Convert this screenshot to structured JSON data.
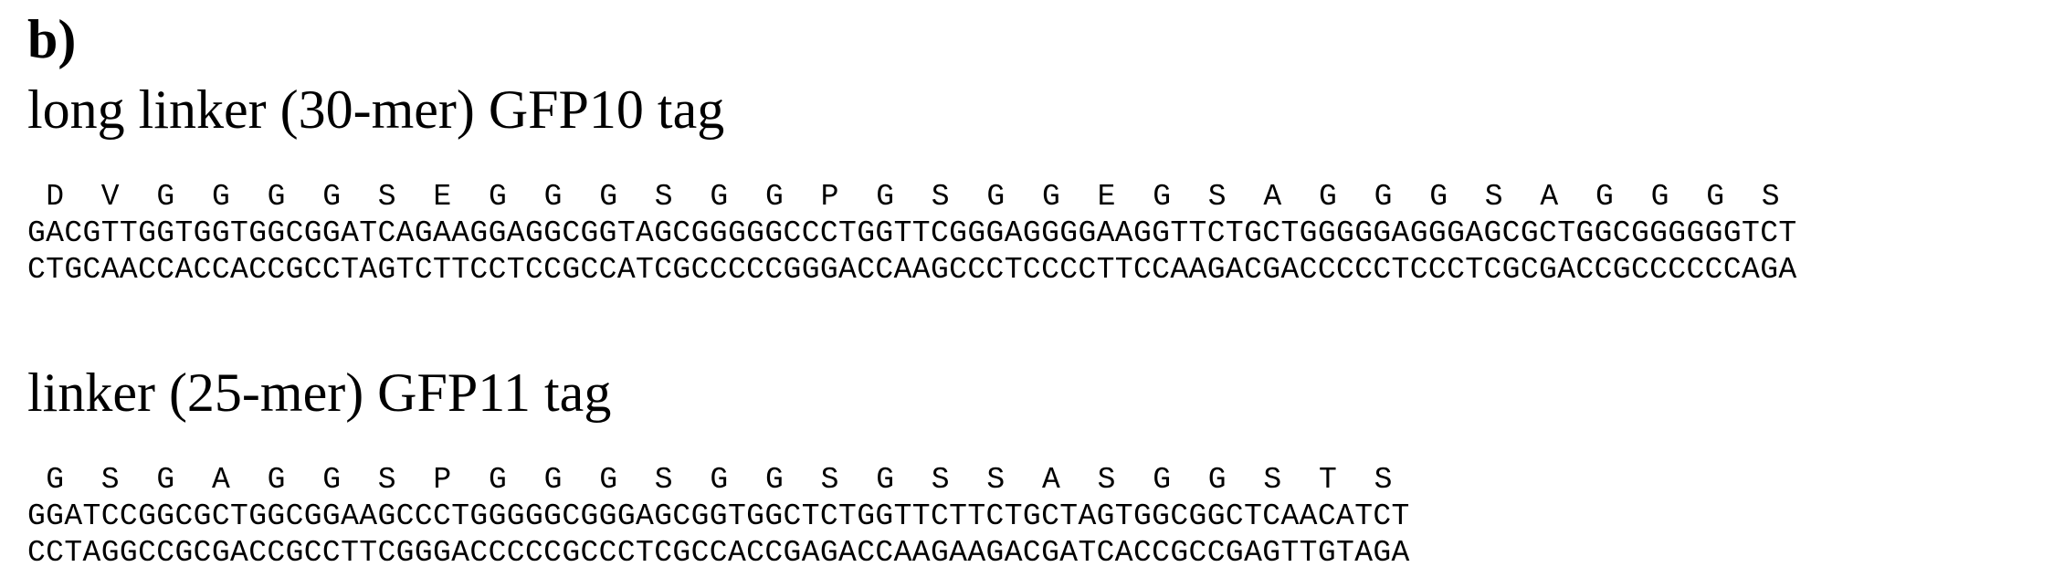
{
  "panel_label": "b)",
  "sections": [
    {
      "title": "long linker (30-mer) GFP10 tag",
      "amino_acids": [
        "D",
        "V",
        "G",
        "G",
        "G",
        "G",
        "S",
        "E",
        "G",
        "G",
        "G",
        "S",
        "G",
        "G",
        "P",
        "G",
        "S",
        "G",
        "G",
        "E",
        "G",
        "S",
        "A",
        "G",
        "G",
        "G",
        "S",
        "A",
        "G",
        "G",
        "G",
        "S"
      ],
      "forward_strand": "GACGTTGGTGGTGGCGGATCAGAAGGAGGCGGTAGCGGGGGCCCTGGTTCGGGAGGGGAAGGTTCTGCTGGGGGAGGGAGCGCTGGCGGGGGGTCT",
      "reverse_strand": "CTGCAACCACCACCGCCTAGTCTTCCTCCGCCATCGCCCCCGGGACCAAGCCCTCCCCTTCCAAGACGACCCCCTCCCTCGCGACCGCCCCCCAGA"
    },
    {
      "title": "linker (25-mer) GFP11 tag",
      "amino_acids": [
        "G",
        "S",
        "G",
        "A",
        "G",
        "G",
        "S",
        "P",
        "G",
        "G",
        "G",
        "S",
        "G",
        "G",
        "S",
        "G",
        "S",
        "S",
        "A",
        "S",
        "G",
        "G",
        "S",
        "T",
        "S"
      ],
      "forward_strand": "GGATCCGGCGCTGGCGGAAGCCCTGGGGGCGGGAGCGGTGGCTCTGGTTCTTCTGCTAGTGGCGGCTCAACATCT",
      "reverse_strand": "CCTAGGCCGCGACCGCCTTCGGGACCCCCGCCCTCGCCACCGAGACCAAGAAGACGATCACCGCCGAGTTGTAGA"
    }
  ]
}
